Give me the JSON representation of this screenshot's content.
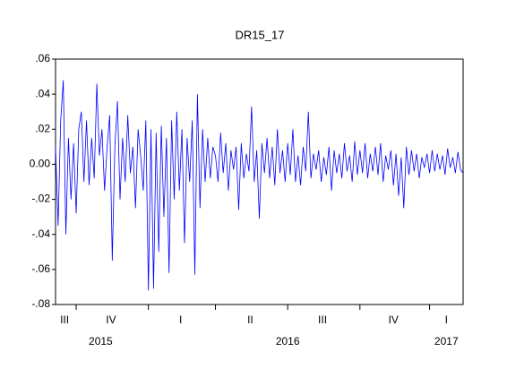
{
  "chart_data": {
    "type": "line",
    "title": "DR15_17",
    "color": "#0000ff",
    "ylim": [
      -0.08,
      0.06
    ],
    "yticks": [
      {
        "value": 0.06,
        "label": ".06"
      },
      {
        "value": 0.04,
        "label": ".04"
      },
      {
        "value": 0.02,
        "label": ".02"
      },
      {
        "value": 0,
        "label": "0.00"
      },
      {
        "value": -0.02,
        "label": "-.02"
      },
      {
        "value": -0.04,
        "label": "-.04"
      },
      {
        "value": -0.06,
        "label": "-.06"
      },
      {
        "value": -0.08,
        "label": "-.08"
      }
    ],
    "years": [
      {
        "label": "2015",
        "quarters": [
          {
            "label": "III",
            "values": [
              0.01,
              -0.035,
              0.025,
              0.048,
              -0.04,
              0.015,
              -0.02,
              0.012
            ]
          },
          {
            "label": "IV",
            "values": [
              -0.028,
              0.02,
              0.03,
              -0.01,
              0.025,
              -0.012,
              0.015,
              -0.008,
              0.046,
              0.005,
              0.02,
              -0.015,
              0.01,
              0.028,
              -0.055,
              0.01,
              0.036,
              -0.02,
              0.015,
              -0.01,
              0.028,
              -0.005,
              0.01,
              -0.025,
              0.02,
              0.005,
              -0.015,
              0.025
            ]
          }
        ]
      },
      {
        "label": "2016",
        "quarters": [
          {
            "label": "I",
            "values": [
              -0.072,
              0.02,
              -0.071,
              0.018,
              -0.05,
              0.022,
              -0.03,
              0.015,
              -0.062,
              0.025,
              -0.02,
              0.03,
              -0.015,
              0.02,
              -0.045,
              0.015,
              -0.01,
              0.025,
              -0.063,
              0.04,
              -0.025,
              0.02,
              -0.01,
              0.015,
              -0.008,
              0.01
            ]
          },
          {
            "label": "II",
            "values": [
              0.005,
              -0.01,
              0.018,
              -0.005,
              0.012,
              -0.015,
              0.008,
              -0.003,
              0.01,
              -0.026,
              0.012,
              -0.008,
              0.006,
              -0.004,
              0.033,
              -0.01,
              0.008,
              -0.031,
              0.012,
              -0.005,
              0.015,
              -0.008,
              0.01,
              -0.012,
              0.02,
              -0.005,
              0.008,
              -0.01
            ]
          },
          {
            "label": "III",
            "values": [
              0.012,
              -0.006,
              0.02,
              -0.01,
              0.005,
              -0.012,
              0.01,
              -0.004,
              0.03,
              -0.008,
              0.006,
              -0.003,
              0.008,
              -0.01,
              0.004,
              -0.006,
              0.01,
              -0.015,
              0.008,
              -0.005,
              0.006,
              -0.008,
              0.012,
              -0.004,
              0.005,
              -0.01,
              0.013,
              -0.006
            ]
          },
          {
            "label": "IV",
            "values": [
              0.008,
              -0.005,
              0.012,
              -0.008,
              0.006,
              -0.004,
              0.01,
              -0.006,
              0.012,
              -0.01,
              0.005,
              -0.003,
              0.008,
              -0.012,
              0.006,
              -0.018,
              0.004,
              -0.025,
              0.01,
              -0.006,
              0.008,
              -0.004,
              0.006,
              -0.008,
              0.004,
              -0.002,
              0.006
            ]
          }
        ]
      },
      {
        "label": "2017",
        "quarters": [
          {
            "label": "I",
            "values": [
              -0.005,
              0.008,
              -0.004,
              0.006,
              -0.003,
              0.005,
              -0.006,
              0.009,
              -0.002,
              0.004,
              -0.005,
              0.007,
              -0.003,
              -0.005
            ]
          }
        ]
      }
    ]
  }
}
